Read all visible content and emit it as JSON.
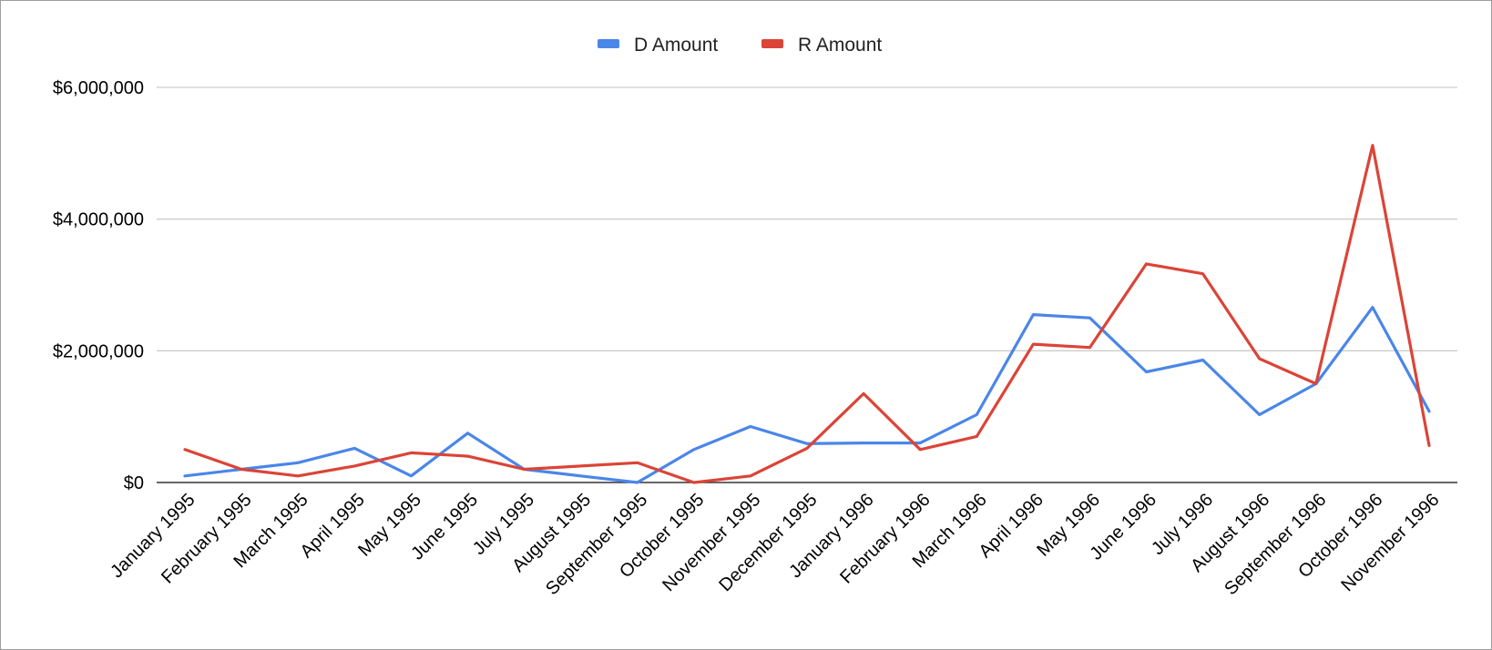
{
  "chart_data": {
    "type": "line",
    "title": "",
    "xlabel": "",
    "ylabel": "",
    "categories": [
      "January 1995",
      "February 1995",
      "March 1995",
      "April 1995",
      "May 1995",
      "June 1995",
      "July 1995",
      "August 1995",
      "September 1995",
      "October 1995",
      "November 1995",
      "December 1995",
      "January 1996",
      "February 1996",
      "March 1996",
      "April 1996",
      "May 1996",
      "June 1996",
      "July 1996",
      "August 1996",
      "September 1996",
      "October 1996",
      "November 1996"
    ],
    "series": [
      {
        "name": "D Amount",
        "color": "#4a86e8",
        "values": [
          100000,
          200000,
          300000,
          520000,
          100000,
          750000,
          200000,
          100000,
          0,
          500000,
          850000,
          590000,
          600000,
          600000,
          1030000,
          2550000,
          2500000,
          1680000,
          1860000,
          1030000,
          1500000,
          2660000,
          1080000
        ]
      },
      {
        "name": "R Amount",
        "color": "#db4437",
        "values": [
          500000,
          200000,
          100000,
          250000,
          450000,
          400000,
          200000,
          250000,
          300000,
          0,
          100000,
          520000,
          1350000,
          500000,
          700000,
          2100000,
          2050000,
          3320000,
          3170000,
          1880000,
          1500000,
          5120000,
          560000
        ]
      }
    ],
    "ylim": [
      0,
      6000000
    ],
    "yticks": [
      0,
      2000000,
      4000000,
      6000000
    ],
    "ytick_labels": [
      "$0",
      "$2,000,000",
      "$4,000,000",
      "$6,000,000"
    ],
    "grid": true,
    "legend_position": "top-center"
  }
}
